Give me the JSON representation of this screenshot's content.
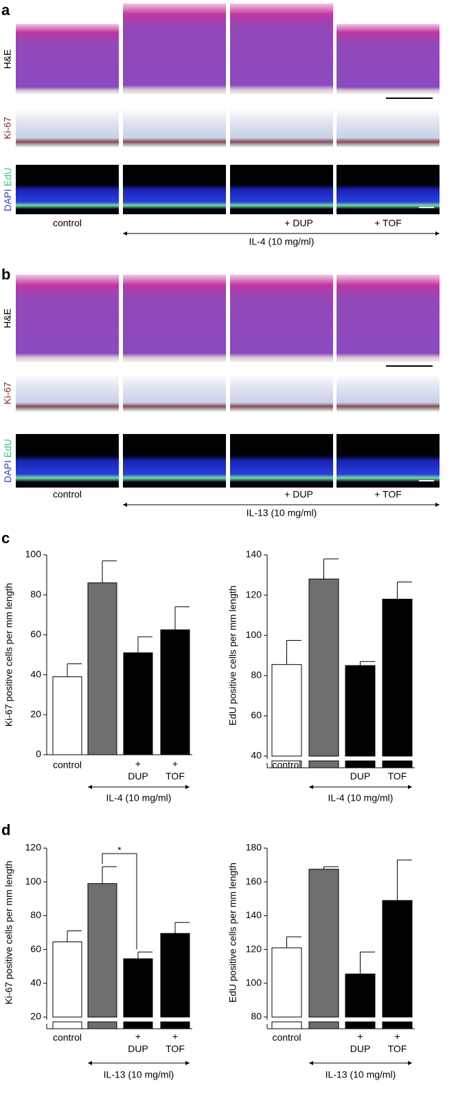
{
  "figure": {
    "panels": [
      {
        "label": "a",
        "rows": [
          "H&E",
          "Ki-67"
        ],
        "stain": [
          "DAPI",
          "EdU"
        ],
        "columns": [
          "control",
          "+ DUP",
          "+ TOF"
        ],
        "group": "IL-4 (10 mg/ml)"
      },
      {
        "label": "b",
        "rows": [
          "H&E",
          "Ki-67"
        ],
        "stain": [
          "DAPI",
          "EdU"
        ],
        "columns": [
          "control",
          "+ DUP",
          "+ TOF"
        ],
        "group": "IL-13 (10 mg/ml)"
      }
    ],
    "chart_panels": [
      "c",
      "d"
    ]
  },
  "chart_data": [
    {
      "type": "bar",
      "ylabel": "Ki-67 positive cells per mm length",
      "categories": [
        "control",
        null,
        "+ DUP",
        "+ TOF"
      ],
      "values": [
        39,
        86,
        51,
        62.5
      ],
      "errors": [
        6.5,
        11,
        8,
        11.5
      ],
      "colors": [
        "#ffffff",
        "#6e6e6e",
        "#000000",
        "#000000"
      ],
      "ylim": [
        0,
        100
      ],
      "yticks": [
        0,
        20,
        40,
        60,
        80,
        100
      ],
      "group_label": "IL-4 (10 mg/ml)"
    },
    {
      "type": "bar",
      "ylabel": "EdU positive cells per mm length",
      "categories": [
        "control",
        null,
        "+ DUP",
        "+ TOF"
      ],
      "values": [
        85.5,
        128,
        85,
        118
      ],
      "errors": [
        12,
        10,
        2,
        8.5
      ],
      "colors": [
        "#ffffff",
        "#6e6e6e",
        "#000000",
        "#000000"
      ],
      "ylim": [
        40,
        140
      ],
      "yticks": [
        40,
        60,
        80,
        100,
        120,
        140
      ],
      "axis_break": true,
      "group_label": "IL-4 (10 mg/ml)"
    },
    {
      "type": "bar",
      "ylabel": "Ki-67 positive cells per mm length",
      "categories": [
        "control",
        null,
        "+ DUP",
        "+ TOF"
      ],
      "values": [
        64.5,
        99,
        54.5,
        69.5
      ],
      "errors": [
        6.5,
        10,
        4,
        6.5
      ],
      "colors": [
        "#ffffff",
        "#6e6e6e",
        "#000000",
        "#000000"
      ],
      "ylim": [
        20,
        120
      ],
      "yticks": [
        20,
        40,
        60,
        80,
        100,
        120
      ],
      "axis_break": true,
      "significance": "*",
      "group_label": "IL-13 (10 mg/ml)"
    },
    {
      "type": "bar",
      "ylabel": "EdU positive cells per mm length",
      "categories": [
        "control",
        null,
        "+ DUP",
        "+ TOF"
      ],
      "values": [
        121,
        167.5,
        105.5,
        149
      ],
      "errors": [
        6.5,
        1.5,
        13,
        24
      ],
      "colors": [
        "#ffffff",
        "#6e6e6e",
        "#000000",
        "#000000"
      ],
      "ylim": [
        80,
        180
      ],
      "yticks": [
        80,
        100,
        120,
        140,
        160,
        180
      ],
      "axis_break": true,
      "group_label": "IL-13 (10 mg/ml)"
    }
  ]
}
